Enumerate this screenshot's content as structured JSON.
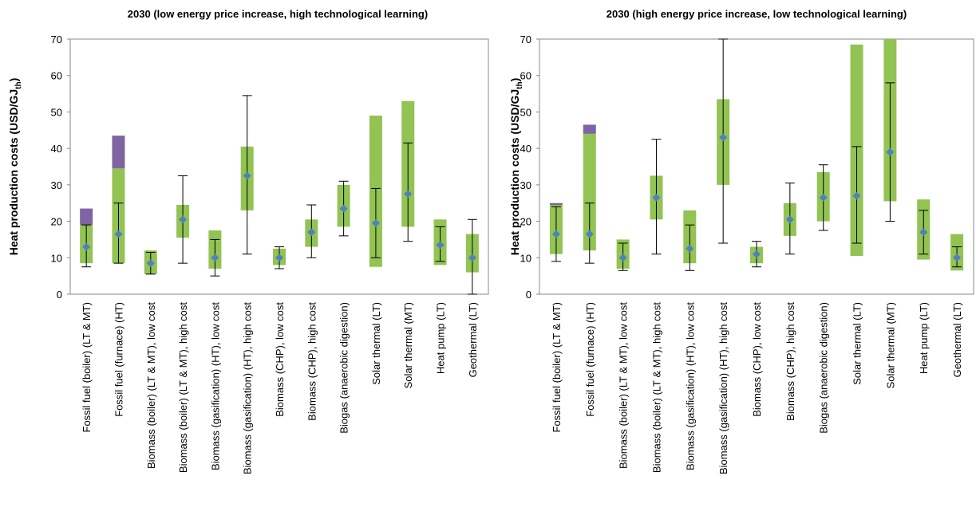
{
  "chart_data": [
    {
      "type": "range",
      "title": "2030 (low energy price increase, high technological learning)",
      "ylabel": "Heat production costs (USD/GJ",
      "ylabel_sub": "th",
      "ylabel_end": ")",
      "categories": [
        "Fossil fuel (boiler) (LT & MT)",
        "Fossil fuel (furnace) (HT)",
        "Biomass (boiler) (LT & MT), low cost",
        "Biomass (boiler) (LT & MT), high cost",
        "Biomass (gasification) (HT), low cost",
        "Biomass (gasification) (HT), high cost",
        "Biomass (CHP), low cost",
        "Biomass (CHP), high cost",
        "Biogas (anaerobic digestion)",
        "Solar thermal (LT)",
        "Solar thermal (MT)",
        "Heat pump (LT)",
        "Geothermal (LT)"
      ],
      "low": [
        8.5,
        8.5,
        5.5,
        15.5,
        7,
        23,
        8,
        13,
        18.5,
        7.5,
        18.5,
        8,
        6
      ],
      "high": [
        19,
        34.5,
        12,
        24.5,
        17.5,
        40.5,
        12.5,
        20.5,
        30,
        49,
        53,
        20.5,
        16.5
      ],
      "extra_high": [
        23.5,
        43.5,
        null,
        null,
        null,
        null,
        null,
        null,
        null,
        null,
        null,
        null,
        null
      ],
      "values": [
        13,
        16.5,
        8.5,
        20.5,
        10,
        32.5,
        10,
        17,
        23.5,
        19.5,
        27.5,
        13.5,
        10
      ],
      "err_low": [
        7.5,
        8.5,
        5.5,
        8.5,
        5,
        11,
        7,
        10,
        16,
        10,
        14.5,
        9,
        0
      ],
      "err_high": [
        19,
        25,
        11.5,
        32.5,
        15,
        54.5,
        13,
        24.5,
        31,
        29,
        41.5,
        18.5,
        20.5
      ],
      "range_color": "#92c353",
      "extra_color": "#8064a2",
      "point_color": "#4f81bd",
      "ylim": [
        0,
        70
      ],
      "yticks": [
        0,
        10,
        20,
        30,
        40,
        50,
        60,
        70
      ]
    },
    {
      "type": "range",
      "title": "2030 (high energy price increase, low technological learning)",
      "ylabel": "Heat production costs (USD/GJ",
      "ylabel_sub": "th",
      "ylabel_end": ")",
      "categories": [
        "Fossil fuel (boiler) (LT & MT)",
        "Fossil fuel (furnace) (HT)",
        "Biomass (boiler) (LT & MT), low cost",
        "Biomass (boiler) (LT & MT), high cost",
        "Biomass (gasification) (HT), low cost",
        "Biomass (gasification) (HT), high cost",
        "Biomass (CHP), low cost",
        "Biomass (CHP), high cost",
        "Biogas (anaerobic digestion)",
        "Solar thermal (LT)",
        "Solar thermal (MT)",
        "Heat pump (LT)",
        "Geothermal (LT)"
      ],
      "low": [
        11,
        12,
        7,
        20.5,
        8.5,
        30,
        8.5,
        16,
        20,
        10.5,
        25.5,
        9.5,
        6.5
      ],
      "high": [
        24.5,
        44,
        15,
        32.5,
        23,
        53.5,
        13,
        25,
        33.5,
        68.5,
        70,
        26,
        16.5
      ],
      "extra_high": [
        25,
        46.5,
        null,
        null,
        null,
        null,
        null,
        null,
        null,
        null,
        null,
        null,
        null
      ],
      "values": [
        16.5,
        16.5,
        10,
        26.5,
        12.5,
        43,
        11,
        20.5,
        26.5,
        27,
        39,
        17,
        10
      ],
      "err_low": [
        9,
        8.5,
        6.5,
        11,
        6.5,
        14,
        7.5,
        11,
        17.5,
        14,
        20,
        11,
        7.5
      ],
      "err_high": [
        24,
        25,
        14,
        42.5,
        19,
        70,
        14.5,
        30.5,
        35.5,
        40.5,
        58,
        23,
        13
      ],
      "range_color": "#92c353",
      "extra_color": "#8064a2",
      "point_color": "#4f81bd",
      "ylim": [
        0,
        70
      ],
      "yticks": [
        0,
        10,
        20,
        30,
        40,
        50,
        60,
        70
      ]
    }
  ]
}
